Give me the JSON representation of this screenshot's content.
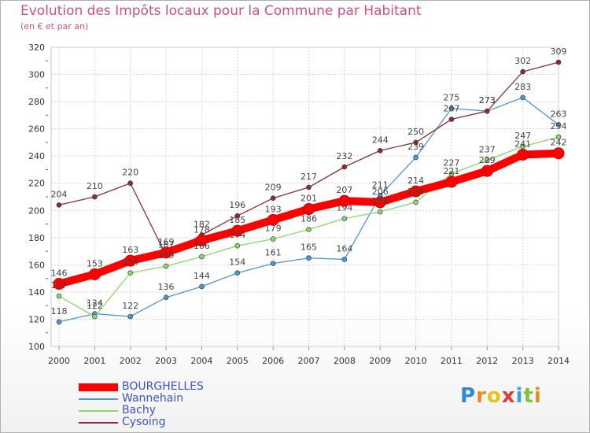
{
  "chart_data": {
    "type": "line",
    "title": "Evolution des Impôts locaux pour la Commune par Habitant",
    "subtitle": "(en € et par an)",
    "x": [
      2000,
      2001,
      2002,
      2003,
      2004,
      2005,
      2006,
      2007,
      2008,
      2009,
      2010,
      2011,
      2012,
      2013,
      2014
    ],
    "ylim": [
      100,
      320
    ],
    "yticks": [
      100,
      120,
      140,
      160,
      180,
      200,
      220,
      240,
      260,
      280,
      300,
      320
    ],
    "grid": true,
    "legend_position": "bottom-left",
    "series": [
      {
        "name": "BOURGHELLES",
        "color": "#ff0000",
        "values": [
          146,
          153,
          163,
          169,
          178,
          185,
          193,
          201,
          207,
          206,
          214,
          221,
          229,
          241,
          242
        ]
      },
      {
        "name": "Wannehain",
        "color": "#4f96d4",
        "values": [
          118,
          124,
          122,
          136,
          144,
          154,
          161,
          165,
          164,
          211,
          239,
          275,
          273,
          283,
          263
        ]
      },
      {
        "name": "Bachy",
        "color": "#88d86a",
        "values": [
          137,
          122,
          154,
          159,
          166,
          174,
          179,
          186,
          194,
          199,
          206,
          227,
          237,
          247,
          254
        ]
      },
      {
        "name": "Cysoing",
        "color": "#8b2e34",
        "values": [
          204,
          210,
          220,
          167,
          182,
          196,
          209,
          217,
          232,
          244,
          250,
          267,
          273,
          302,
          309
        ]
      }
    ]
  },
  "brand": {
    "letters": [
      "P",
      "r",
      "o",
      "x",
      "i",
      "t",
      "i"
    ],
    "colors": [
      "#2e8ad8",
      "#f08a1c",
      "#e8c21a",
      "#e23a3a",
      "#3aa0e0",
      "#7cc242",
      "#f08a1c"
    ]
  }
}
